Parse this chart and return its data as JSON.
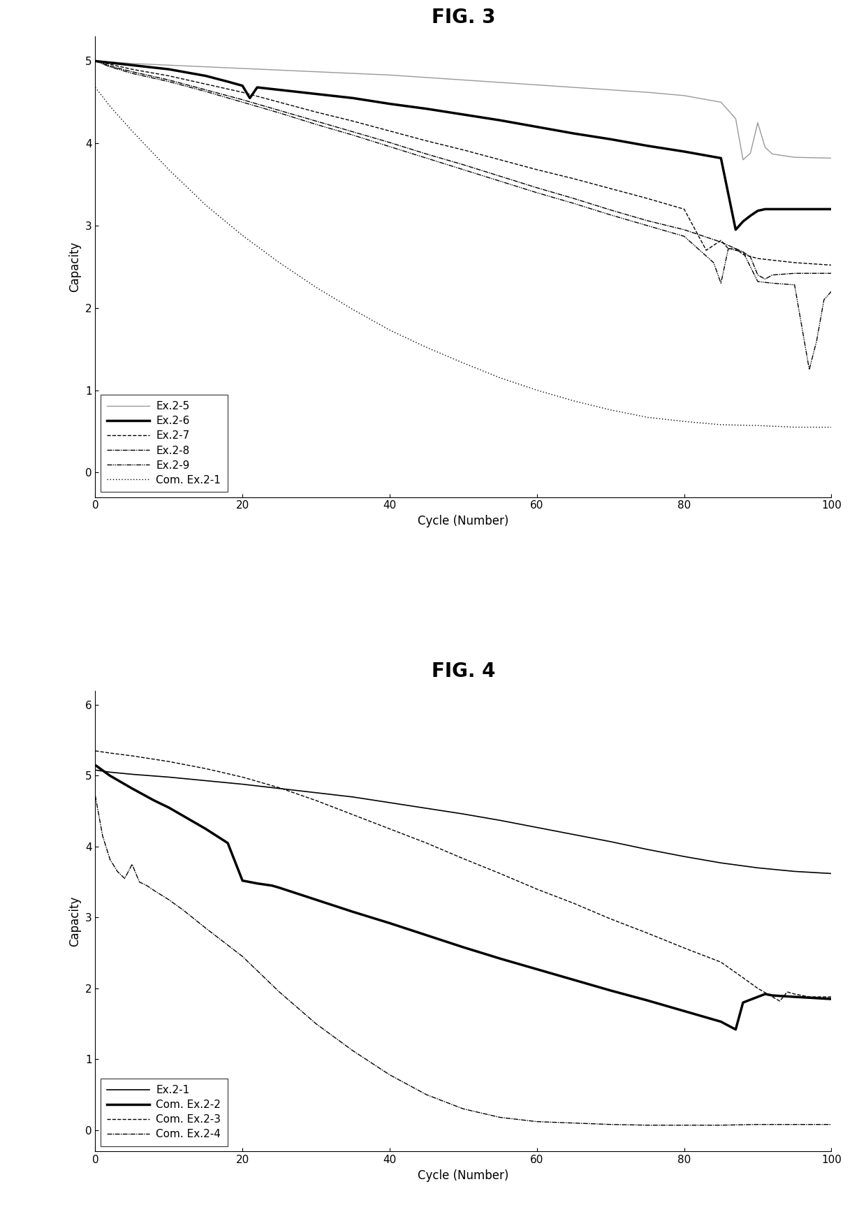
{
  "fig3": {
    "title": "FIG. 3",
    "xlabel": "Cycle (Number)",
    "ylabel": "Capacity",
    "xlim": [
      0,
      100
    ],
    "ylim": [
      -0.3,
      5.3
    ],
    "yticks": [
      0,
      1,
      2,
      3,
      4,
      5
    ],
    "xticks": [
      0,
      20,
      40,
      60,
      80,
      100
    ],
    "series": {
      "Ex.2-5": {
        "x": [
          0,
          2,
          5,
          10,
          15,
          20,
          25,
          30,
          35,
          40,
          45,
          50,
          55,
          60,
          65,
          70,
          75,
          80,
          85,
          87,
          88,
          89,
          90,
          91,
          92,
          95,
          100
        ],
        "y": [
          5.0,
          4.99,
          4.97,
          4.95,
          4.93,
          4.91,
          4.89,
          4.87,
          4.85,
          4.83,
          4.8,
          4.77,
          4.74,
          4.71,
          4.68,
          4.65,
          4.62,
          4.58,
          4.5,
          4.3,
          3.8,
          3.88,
          4.25,
          3.95,
          3.87,
          3.83,
          3.82
        ]
      },
      "Ex.2-6": {
        "x": [
          0,
          2,
          5,
          10,
          15,
          18,
          20,
          21,
          22,
          25,
          30,
          35,
          40,
          45,
          50,
          55,
          60,
          65,
          70,
          75,
          80,
          85,
          87,
          88,
          89,
          90,
          91,
          95,
          100
        ],
        "y": [
          5.0,
          4.98,
          4.95,
          4.9,
          4.82,
          4.75,
          4.7,
          4.55,
          4.68,
          4.65,
          4.6,
          4.55,
          4.48,
          4.42,
          4.35,
          4.28,
          4.2,
          4.12,
          4.05,
          3.97,
          3.9,
          3.82,
          2.95,
          3.05,
          3.12,
          3.18,
          3.2,
          3.2,
          3.2
        ]
      },
      "Ex.2-7": {
        "x": [
          0,
          2,
          5,
          10,
          15,
          20,
          25,
          30,
          35,
          40,
          45,
          50,
          55,
          60,
          65,
          70,
          75,
          80,
          83,
          85,
          86,
          87,
          88,
          90,
          92,
          95,
          100
        ],
        "y": [
          5.0,
          4.96,
          4.9,
          4.82,
          4.72,
          4.62,
          4.5,
          4.38,
          4.27,
          4.15,
          4.03,
          3.92,
          3.8,
          3.68,
          3.57,
          3.45,
          3.33,
          3.2,
          2.7,
          2.82,
          2.72,
          2.72,
          2.65,
          2.6,
          2.58,
          2.55,
          2.52
        ]
      },
      "Ex.2-8": {
        "x": [
          0,
          2,
          5,
          10,
          15,
          20,
          25,
          30,
          35,
          40,
          45,
          50,
          55,
          60,
          65,
          70,
          75,
          80,
          85,
          87,
          88,
          89,
          90,
          91,
          92,
          95,
          100
        ],
        "y": [
          5.0,
          4.94,
          4.87,
          4.77,
          4.65,
          4.53,
          4.4,
          4.27,
          4.14,
          4.01,
          3.87,
          3.74,
          3.6,
          3.46,
          3.33,
          3.19,
          3.06,
          2.95,
          2.8,
          2.72,
          2.68,
          2.62,
          2.4,
          2.35,
          2.4,
          2.42,
          2.42
        ]
      },
      "Ex.2-9": {
        "x": [
          0,
          2,
          5,
          10,
          15,
          20,
          25,
          30,
          35,
          40,
          45,
          50,
          55,
          60,
          65,
          70,
          75,
          80,
          84,
          85,
          86,
          87,
          88,
          90,
          92,
          95,
          97,
          98,
          99,
          100
        ],
        "y": [
          5.0,
          4.93,
          4.85,
          4.75,
          4.63,
          4.5,
          4.37,
          4.23,
          4.1,
          3.96,
          3.82,
          3.68,
          3.54,
          3.4,
          3.27,
          3.13,
          3.0,
          2.87,
          2.55,
          2.3,
          2.72,
          2.7,
          2.68,
          2.32,
          2.3,
          2.28,
          1.25,
          1.6,
          2.1,
          2.2
        ]
      },
      "Com. Ex.2-1": {
        "x": [
          0,
          2,
          5,
          10,
          15,
          20,
          25,
          30,
          35,
          40,
          45,
          50,
          55,
          60,
          65,
          70,
          75,
          80,
          85,
          90,
          95,
          100
        ],
        "y": [
          4.68,
          4.45,
          4.15,
          3.68,
          3.25,
          2.88,
          2.55,
          2.25,
          1.98,
          1.73,
          1.52,
          1.33,
          1.15,
          1.0,
          0.87,
          0.76,
          0.67,
          0.62,
          0.58,
          0.57,
          0.55,
          0.55
        ]
      }
    },
    "legend_order": [
      "Ex.2-5",
      "Ex.2-6",
      "Ex.2-7",
      "Ex.2-8",
      "Ex.2-9",
      "Com. Ex.2-1"
    ]
  },
  "fig4": {
    "title": "FIG. 4",
    "xlabel": "Cycle (Number)",
    "ylabel": "Capacity",
    "xlim": [
      0,
      100
    ],
    "ylim": [
      -0.3,
      6.2
    ],
    "yticks": [
      0,
      1,
      2,
      3,
      4,
      5,
      6
    ],
    "xticks": [
      0,
      20,
      40,
      60,
      80,
      100
    ],
    "series": {
      "Ex.2-1": {
        "x": [
          0,
          2,
          5,
          10,
          15,
          20,
          25,
          30,
          35,
          40,
          45,
          50,
          55,
          60,
          65,
          70,
          75,
          80,
          85,
          90,
          95,
          100
        ],
        "y": [
          5.08,
          5.05,
          5.02,
          4.98,
          4.93,
          4.88,
          4.82,
          4.76,
          4.7,
          4.62,
          4.54,
          4.46,
          4.37,
          4.27,
          4.17,
          4.07,
          3.96,
          3.86,
          3.77,
          3.7,
          3.65,
          3.62
        ]
      },
      "Com. Ex.2-2": {
        "x": [
          0,
          2,
          5,
          8,
          10,
          15,
          18,
          20,
          22,
          24,
          25,
          30,
          35,
          40,
          45,
          50,
          55,
          60,
          65,
          70,
          75,
          80,
          85,
          87,
          88,
          90,
          91,
          92,
          95,
          100
        ],
        "y": [
          5.15,
          5.0,
          4.82,
          4.65,
          4.55,
          4.25,
          4.05,
          3.52,
          3.48,
          3.45,
          3.42,
          3.25,
          3.08,
          2.92,
          2.75,
          2.58,
          2.42,
          2.27,
          2.12,
          1.97,
          1.83,
          1.68,
          1.53,
          1.42,
          1.8,
          1.88,
          1.92,
          1.9,
          1.88,
          1.85
        ]
      },
      "Com. Ex.2-3": {
        "x": [
          0,
          2,
          5,
          10,
          15,
          20,
          25,
          30,
          35,
          40,
          45,
          50,
          55,
          60,
          65,
          70,
          75,
          80,
          85,
          88,
          90,
          92,
          93,
          94,
          95,
          97,
          100
        ],
        "y": [
          5.35,
          5.32,
          5.28,
          5.2,
          5.1,
          4.98,
          4.83,
          4.65,
          4.45,
          4.25,
          4.05,
          3.83,
          3.62,
          3.4,
          3.2,
          2.98,
          2.78,
          2.57,
          2.37,
          2.15,
          2.0,
          1.88,
          1.82,
          1.95,
          1.92,
          1.88,
          1.88
        ]
      },
      "Com. Ex.2-4": {
        "x": [
          0,
          1,
          2,
          3,
          4,
          5,
          6,
          7,
          8,
          10,
          12,
          15,
          20,
          25,
          30,
          35,
          40,
          45,
          50,
          55,
          60,
          65,
          70,
          75,
          80,
          85,
          90,
          95,
          100
        ],
        "y": [
          4.72,
          4.15,
          3.82,
          3.65,
          3.55,
          3.75,
          3.5,
          3.45,
          3.38,
          3.25,
          3.1,
          2.85,
          2.45,
          1.95,
          1.5,
          1.12,
          0.78,
          0.5,
          0.3,
          0.18,
          0.12,
          0.1,
          0.08,
          0.07,
          0.07,
          0.07,
          0.08,
          0.08,
          0.08
        ]
      }
    },
    "legend_order": [
      "Ex.2-1",
      "Com. Ex.2-2",
      "Com. Ex.2-3",
      "Com. Ex.2-4"
    ]
  },
  "fig3_legend_styles": {
    "Ex.2-5": {
      "color": "#999999",
      "linewidth": 1.0,
      "linestyle": "solid"
    },
    "Ex.2-6": {
      "color": "#000000",
      "linewidth": 2.5,
      "linestyle": "solid"
    },
    "Ex.2-7": {
      "color": "#000000",
      "linewidth": 1.0,
      "linestyle": "dashed"
    },
    "Ex.2-8": {
      "color": "#000000",
      "linewidth": 1.0,
      "linestyle": "dashdot1"
    },
    "Ex.2-9": {
      "color": "#000000",
      "linewidth": 1.0,
      "linestyle": "dashdot2"
    },
    "Com. Ex.2-1": {
      "color": "#000000",
      "linewidth": 1.0,
      "linestyle": "dotted"
    }
  },
  "fig4_legend_styles": {
    "Ex.2-1": {
      "color": "#000000",
      "linewidth": 1.2,
      "linestyle": "solid"
    },
    "Com. Ex.2-2": {
      "color": "#000000",
      "linewidth": 2.5,
      "linestyle": "solid"
    },
    "Com. Ex.2-3": {
      "color": "#000000",
      "linewidth": 1.0,
      "linestyle": "dashed"
    },
    "Com. Ex.2-4": {
      "color": "#000000",
      "linewidth": 1.0,
      "linestyle": "dashdot1"
    }
  },
  "background_color": "#ffffff",
  "title_fontsize": 20,
  "axis_fontsize": 12,
  "tick_fontsize": 11,
  "legend_fontsize": 11
}
